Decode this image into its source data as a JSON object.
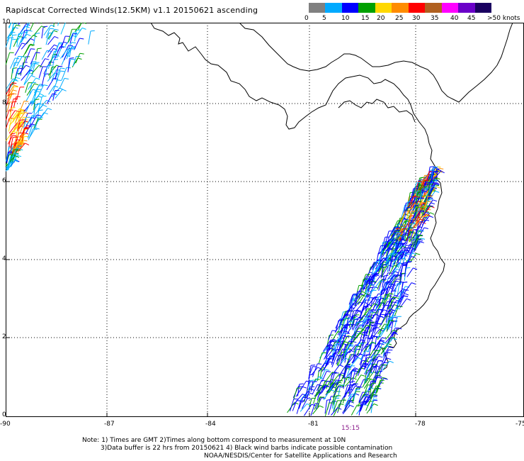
{
  "title": "Rapidscat Corrected Winds(12.5KM) v1.1 20150621 ascending",
  "legend": {
    "labels": [
      "0",
      "5",
      "10",
      "15",
      "20",
      "25",
      "30",
      "35",
      "40",
      "45",
      ">50 knots"
    ],
    "colors": [
      "#808080",
      "#00aaff",
      "#0000ff",
      "#00a000",
      "#ffd800",
      "#ff8c00",
      "#ff0000",
      "#b06020",
      "#ff00ff",
      "#6a00c8",
      "#1a0060"
    ]
  },
  "axes": {
    "lon_labels": [
      "-90",
      "-87",
      "-84",
      "-81",
      "-78",
      "-75"
    ],
    "lat_labels": [
      "10",
      "8",
      "6",
      "4",
      "2",
      "0"
    ]
  },
  "time_label": "15:15",
  "notes": {
    "line1": "Note: 1) Times are GMT 2)Times along bottom correspond to measurement at 10N",
    "line2": "3)Data buffer is 22 hrs from 20150621 4) Black wind barbs indicate possible contamination",
    "line3": "NOAA/NESDIS/Center for Satellite Applications and Research"
  }
}
